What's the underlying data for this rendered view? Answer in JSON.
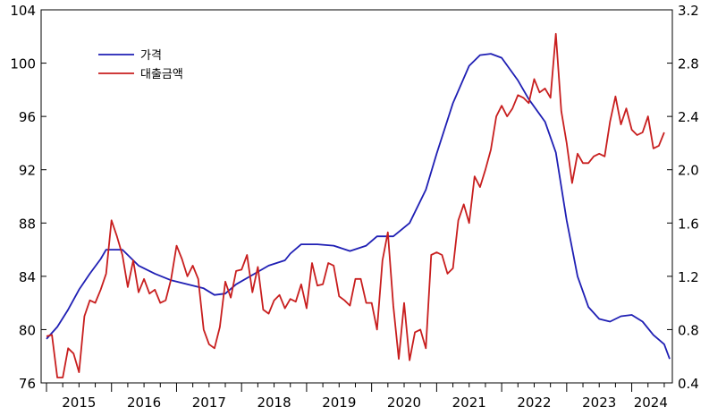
{
  "chart_data": {
    "type": "line",
    "x_axis": {
      "labels": [
        "2015",
        "2016",
        "2017",
        "2018",
        "2019",
        "2020",
        "2021",
        "2022",
        "2023",
        "2024"
      ],
      "range": [
        "2015-01",
        "2024-08"
      ]
    },
    "y_left": {
      "min": 76,
      "max": 104,
      "ticks": [
        104,
        100,
        96,
        92,
        88,
        84,
        80,
        76
      ]
    },
    "y_right": {
      "min": 0.4,
      "max": 3.2,
      "ticks": [
        "3.2",
        "2.8",
        "2.4",
        "2.0",
        "1.6",
        "1.2",
        "0.8",
        "0.4"
      ]
    },
    "grid": false,
    "legend": {
      "position": "top-left"
    },
    "series": [
      {
        "name": "가격",
        "axis": "left",
        "color": "#1f1fb4",
        "points": [
          [
            "2015-01",
            79.3
          ],
          [
            "2015-03",
            80.2
          ],
          [
            "2015-05",
            81.5
          ],
          [
            "2015-07",
            83.0
          ],
          [
            "2015-09",
            84.2
          ],
          [
            "2015-11",
            85.3
          ],
          [
            "2015-12",
            86.0
          ],
          [
            "2016-03",
            86.0
          ],
          [
            "2016-06",
            84.8
          ],
          [
            "2016-09",
            84.2
          ],
          [
            "2016-12",
            83.7
          ],
          [
            "2017-06",
            83.1
          ],
          [
            "2017-08",
            82.6
          ],
          [
            "2017-10",
            82.7
          ],
          [
            "2017-12",
            83.4
          ],
          [
            "2018-03",
            84.1
          ],
          [
            "2018-06",
            84.8
          ],
          [
            "2018-09",
            85.2
          ],
          [
            "2018-10",
            85.7
          ],
          [
            "2018-12",
            86.4
          ],
          [
            "2019-03",
            86.4
          ],
          [
            "2019-06",
            86.3
          ],
          [
            "2019-09",
            85.9
          ],
          [
            "2019-12",
            86.3
          ],
          [
            "2020-02",
            87.0
          ],
          [
            "2020-05",
            87.0
          ],
          [
            "2020-08",
            88.0
          ],
          [
            "2020-11",
            90.5
          ],
          [
            "2021-01",
            93.2
          ],
          [
            "2021-04",
            97.0
          ],
          [
            "2021-07",
            99.8
          ],
          [
            "2021-09",
            100.6
          ],
          [
            "2021-11",
            100.7
          ],
          [
            "2022-01",
            100.4
          ],
          [
            "2022-04",
            98.7
          ],
          [
            "2022-06",
            97.3
          ],
          [
            "2022-09",
            95.6
          ],
          [
            "2022-11",
            93.3
          ],
          [
            "2023-01",
            88.2
          ],
          [
            "2023-03",
            84.0
          ],
          [
            "2023-05",
            81.7
          ],
          [
            "2023-07",
            80.8
          ],
          [
            "2023-09",
            80.6
          ],
          [
            "2023-11",
            81.0
          ],
          [
            "2024-01",
            81.1
          ],
          [
            "2024-03",
            80.6
          ],
          [
            "2024-05",
            79.6
          ],
          [
            "2024-07",
            78.9
          ],
          [
            "2024-08",
            77.8
          ]
        ]
      },
      {
        "name": "대출금액",
        "axis": "right",
        "color": "#c81e1e",
        "points": [
          [
            "2015-01",
            0.75
          ],
          [
            "2015-02",
            0.76
          ],
          [
            "2015-03",
            0.44
          ],
          [
            "2015-04",
            0.44
          ],
          [
            "2015-05",
            0.66
          ],
          [
            "2015-06",
            0.62
          ],
          [
            "2015-07",
            0.48
          ],
          [
            "2015-08",
            0.9
          ],
          [
            "2015-09",
            1.02
          ],
          [
            "2015-10",
            1.0
          ],
          [
            "2015-11",
            1.1
          ],
          [
            "2015-12",
            1.22
          ],
          [
            "2016-01",
            1.62
          ],
          [
            "2016-02",
            1.5
          ],
          [
            "2016-03",
            1.36
          ],
          [
            "2016-04",
            1.12
          ],
          [
            "2016-05",
            1.32
          ],
          [
            "2016-06",
            1.08
          ],
          [
            "2016-07",
            1.18
          ],
          [
            "2016-08",
            1.07
          ],
          [
            "2016-09",
            1.1
          ],
          [
            "2016-10",
            1.0
          ],
          [
            "2016-11",
            1.02
          ],
          [
            "2016-12",
            1.18
          ],
          [
            "2017-01",
            1.43
          ],
          [
            "2017-02",
            1.33
          ],
          [
            "2017-03",
            1.2
          ],
          [
            "2017-04",
            1.28
          ],
          [
            "2017-05",
            1.18
          ],
          [
            "2017-06",
            0.8
          ],
          [
            "2017-07",
            0.69
          ],
          [
            "2017-08",
            0.66
          ],
          [
            "2017-09",
            0.82
          ],
          [
            "2017-10",
            1.16
          ],
          [
            "2017-11",
            1.04
          ],
          [
            "2017-12",
            1.24
          ],
          [
            "2018-01",
            1.25
          ],
          [
            "2018-02",
            1.36
          ],
          [
            "2018-03",
            1.08
          ],
          [
            "2018-04",
            1.27
          ],
          [
            "2018-05",
            0.95
          ],
          [
            "2018-06",
            0.92
          ],
          [
            "2018-07",
            1.02
          ],
          [
            "2018-08",
            1.06
          ],
          [
            "2018-09",
            0.96
          ],
          [
            "2018-10",
            1.03
          ],
          [
            "2018-11",
            1.01
          ],
          [
            "2018-12",
            1.14
          ],
          [
            "2019-01",
            0.96
          ],
          [
            "2019-02",
            1.3
          ],
          [
            "2019-03",
            1.13
          ],
          [
            "2019-04",
            1.14
          ],
          [
            "2019-05",
            1.3
          ],
          [
            "2019-06",
            1.28
          ],
          [
            "2019-07",
            1.05
          ],
          [
            "2019-08",
            1.02
          ],
          [
            "2019-09",
            0.98
          ],
          [
            "2019-10",
            1.18
          ],
          [
            "2019-11",
            1.18
          ],
          [
            "2019-12",
            1.0
          ],
          [
            "2020-01",
            1.0
          ],
          [
            "2020-02",
            0.8
          ],
          [
            "2020-03",
            1.32
          ],
          [
            "2020-04",
            1.53
          ],
          [
            "2020-05",
            0.98
          ],
          [
            "2020-06",
            0.58
          ],
          [
            "2020-07",
            1.0
          ],
          [
            "2020-08",
            0.57
          ],
          [
            "2020-09",
            0.78
          ],
          [
            "2020-10",
            0.8
          ],
          [
            "2020-11",
            0.66
          ],
          [
            "2020-12",
            1.36
          ],
          [
            "2021-01",
            1.38
          ],
          [
            "2021-02",
            1.36
          ],
          [
            "2021-03",
            1.22
          ],
          [
            "2021-04",
            1.26
          ],
          [
            "2021-05",
            1.62
          ],
          [
            "2021-06",
            1.74
          ],
          [
            "2021-07",
            1.6
          ],
          [
            "2021-08",
            1.95
          ],
          [
            "2021-09",
            1.87
          ],
          [
            "2021-10",
            2.0
          ],
          [
            "2021-11",
            2.15
          ],
          [
            "2021-12",
            2.4
          ],
          [
            "2022-01",
            2.48
          ],
          [
            "2022-02",
            2.4
          ],
          [
            "2022-03",
            2.46
          ],
          [
            "2022-04",
            2.56
          ],
          [
            "2022-05",
            2.54
          ],
          [
            "2022-06",
            2.5
          ],
          [
            "2022-07",
            2.68
          ],
          [
            "2022-08",
            2.58
          ],
          [
            "2022-09",
            2.61
          ],
          [
            "2022-10",
            2.54
          ],
          [
            "2022-11",
            3.02
          ],
          [
            "2022-12",
            2.44
          ],
          [
            "2023-01",
            2.2
          ],
          [
            "2023-02",
            1.9
          ],
          [
            "2023-03",
            2.12
          ],
          [
            "2023-04",
            2.05
          ],
          [
            "2023-05",
            2.05
          ],
          [
            "2023-06",
            2.1
          ],
          [
            "2023-07",
            2.12
          ],
          [
            "2023-08",
            2.1
          ],
          [
            "2023-09",
            2.36
          ],
          [
            "2023-10",
            2.55
          ],
          [
            "2023-11",
            2.34
          ],
          [
            "2023-12",
            2.46
          ],
          [
            "2024-01",
            2.3
          ],
          [
            "2024-02",
            2.26
          ],
          [
            "2024-03",
            2.28
          ],
          [
            "2024-04",
            2.4
          ],
          [
            "2024-05",
            2.16
          ],
          [
            "2024-06",
            2.18
          ],
          [
            "2024-07",
            2.28
          ]
        ]
      }
    ]
  }
}
